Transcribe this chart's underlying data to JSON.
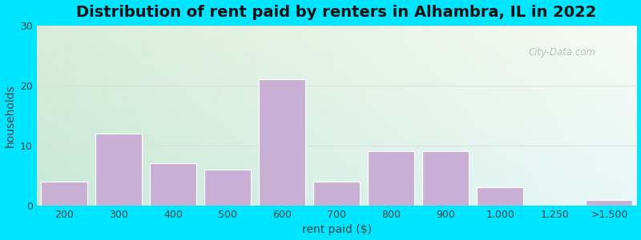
{
  "title": "Distribution of rent paid by renters in Alhambra, IL in 2022",
  "xlabel": "rent paid ($)",
  "ylabel": "households",
  "bar_color": "#c9afd4",
  "bar_edgecolor": "#ffffff",
  "background_outer": "#00e5ff",
  "ylim": [
    0,
    30
  ],
  "yticks": [
    0,
    10,
    20,
    30
  ],
  "categories": [
    "200",
    "300",
    "400",
    "500",
    "600",
    "700",
    "800",
    "900",
    "1,000",
    "1,250",
    ">1,500"
  ],
  "values": [
    4,
    12,
    7,
    6,
    21,
    4,
    9,
    9,
    3,
    0,
    1
  ],
  "bar_positions": [
    0,
    1,
    2,
    3,
    4,
    5,
    6,
    7,
    8,
    9,
    10
  ],
  "watermark": "City-Data.com",
  "title_fontsize": 14,
  "label_fontsize": 10,
  "tick_fontsize": 9,
  "bg_top_left": "#ddf0dd",
  "bg_top_right": "#f5f8f0",
  "bg_bottom_left": "#c8ecd8",
  "bg_bottom_right": "#e8f5f8"
}
